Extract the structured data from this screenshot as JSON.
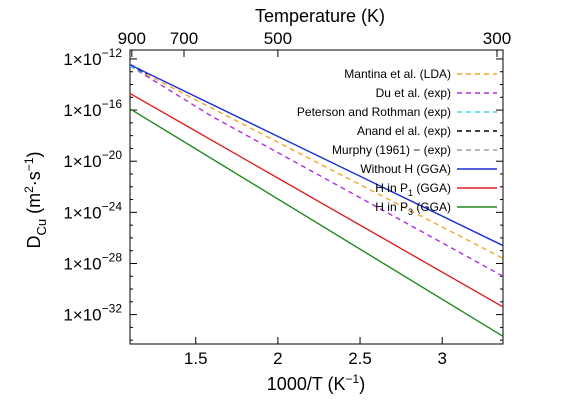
{
  "chart_data": {
    "type": "line",
    "xlabel": "1000/T (K",
    "xlabel_sup": "−1",
    "xlabel_close": ")",
    "x_top_label": "Temperature (K)",
    "ylabel_main": "D",
    "ylabel_sub": "Cu",
    "ylabel_units": "(m",
    "ylabel_units2": "·s",
    "ylabel_sup2": "2",
    "ylabel_sup_neg": "−1",
    "ylabel_close": ")",
    "x_scale": "linear",
    "y_scale": "log",
    "xlim": [
      1.1,
      3.37
    ],
    "ylim_log10": [
      -34.3,
      -11.3
    ],
    "x_ticks": [
      {
        "value": 1.5,
        "label": "1.5"
      },
      {
        "value": 2,
        "label": "2"
      },
      {
        "value": 2.5,
        "label": "2.5"
      },
      {
        "value": 3,
        "label": "3"
      }
    ],
    "y_ticks": [
      {
        "exp": -12,
        "base": "1×10",
        "power": "−12"
      },
      {
        "exp": -16,
        "base": "1×10",
        "power": "−16"
      },
      {
        "exp": -20,
        "base": "1×10",
        "power": "−20"
      },
      {
        "exp": -24,
        "base": "1×10",
        "power": "−24"
      },
      {
        "exp": -28,
        "base": "1×10",
        "power": "−28"
      },
      {
        "exp": -32,
        "base": "1×10",
        "power": "−32"
      }
    ],
    "top_ticks": [
      {
        "temperature": 900,
        "label": "900"
      },
      {
        "temperature": 700,
        "label": "700"
      },
      {
        "temperature": 500,
        "label": "500"
      },
      {
        "temperature": 300,
        "label": "300"
      }
    ],
    "grid": false,
    "legend_position": "top-right",
    "series": [
      {
        "name": "Mantina et al. (LDA)",
        "style": "dashed",
        "color": "#f5a623",
        "x": [
          1.1,
          3.37
        ],
        "y_log10": [
          -12.55,
          -27.6
        ]
      },
      {
        "name": "Du et al. (exp)",
        "style": "dashed",
        "color": "#b030e0",
        "x": [
          1.1,
          1.6,
          3.37
        ],
        "y_log10": [
          -12.55,
          -16.5,
          -29.0
        ]
      },
      {
        "name": "Peterson and Rothman (exp)",
        "style": "dashed",
        "color": "#3cd6e8",
        "x": [
          1.1,
          1.18
        ],
        "y_log10": [
          -12.55,
          -13.1
        ]
      },
      {
        "name": "Anand el al. (exp)",
        "style": "dashed",
        "color": "#000000",
        "x": [
          1.1,
          1.2
        ],
        "y_log10": [
          -12.4,
          -13.2
        ]
      },
      {
        "name": "Murphy (1961) − (exp)",
        "style": "dashed",
        "color": "#a0a0a0",
        "x": [
          1.1,
          1.2
        ],
        "y_log10": [
          -12.4,
          -13.1
        ]
      },
      {
        "name": "Without H (GGA)",
        "name_prefix": "Without H (GGA)",
        "name_sub": "",
        "name_suffix": "",
        "style": "solid",
        "color": "#1a2ed8",
        "x": [
          1.1,
          3.37
        ],
        "y_log10": [
          -12.45,
          -26.6
        ]
      },
      {
        "name": "H in P1 (GGA)",
        "name_prefix": "H in P",
        "name_sub": "1",
        "name_suffix": " (GGA)",
        "style": "solid",
        "color": "#e02020",
        "x": [
          1.1,
          3.37
        ],
        "y_log10": [
          -14.7,
          -31.4
        ]
      },
      {
        "name": "H in P3 (GGA)",
        "name_prefix": "H in P",
        "name_sub": "3",
        "name_suffix": " (GGA)",
        "style": "solid",
        "color": "#208a20",
        "x": [
          1.1,
          3.37
        ],
        "y_log10": [
          -15.9,
          -33.7
        ]
      }
    ]
  }
}
